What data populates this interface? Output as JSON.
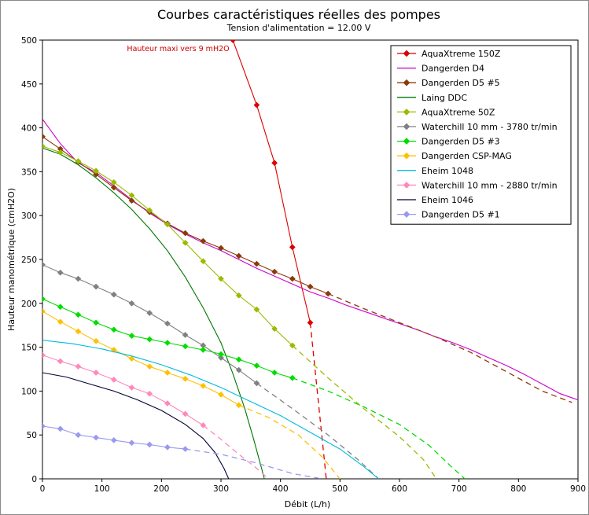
{
  "chart_data": {
    "type": "line",
    "title": "Courbes caractéristiques réelles des pompes",
    "subtitle": "Tension d'alimentation = 12.00 V",
    "xlabel": "Débit (L/h)",
    "ylabel": "Hauteur manométrique (cmH2O)",
    "xlim": [
      0,
      900
    ],
    "ylim": [
      0,
      500
    ],
    "xticks": [
      0,
      100,
      200,
      300,
      400,
      500,
      600,
      700,
      800,
      900
    ],
    "yticks": [
      0,
      50,
      100,
      150,
      200,
      250,
      300,
      350,
      400,
      450,
      500
    ],
    "grid": false,
    "legend_position": "top-right",
    "annotation": {
      "text": "Hauteur maxi vers 9 mH2O",
      "x": 228,
      "y": 490,
      "color": "#cc0000"
    },
    "series": [
      {
        "name": "AquaXtreme 150Z",
        "color": "#dd0000",
        "marker": "diamond",
        "points": [
          [
            320,
            500
          ],
          [
            360,
            426
          ],
          [
            390,
            360
          ],
          [
            420,
            264
          ],
          [
            450,
            178
          ]
        ],
        "extrapolated": [
          [
            450,
            178
          ],
          [
            477,
            0
          ]
        ]
      },
      {
        "name": "Dangerden D4",
        "color": "#cc00cc",
        "marker": "none",
        "points": [
          [
            0,
            410
          ],
          [
            30,
            382
          ],
          [
            60,
            360
          ],
          [
            90,
            349
          ],
          [
            120,
            334
          ],
          [
            150,
            318
          ],
          [
            180,
            303
          ],
          [
            210,
            290
          ],
          [
            240,
            279
          ],
          [
            270,
            269
          ],
          [
            300,
            260
          ],
          [
            330,
            250
          ],
          [
            360,
            240
          ],
          [
            390,
            231
          ],
          [
            420,
            222
          ],
          [
            450,
            213
          ],
          [
            480,
            206
          ],
          [
            510,
            198
          ],
          [
            540,
            191
          ],
          [
            570,
            184
          ],
          [
            600,
            177
          ],
          [
            630,
            170
          ],
          [
            660,
            162
          ],
          [
            690,
            155
          ],
          [
            720,
            147
          ],
          [
            750,
            138
          ],
          [
            780,
            129
          ],
          [
            810,
            119
          ],
          [
            840,
            108
          ],
          [
            870,
            97
          ],
          [
            900,
            90
          ]
        ]
      },
      {
        "name": "Dangerden D5 #5",
        "color": "#8b3a0a",
        "marker": "diamond",
        "points": [
          [
            0,
            390
          ],
          [
            30,
            376
          ],
          [
            60,
            361
          ],
          [
            90,
            347
          ],
          [
            120,
            332
          ],
          [
            150,
            317
          ],
          [
            180,
            304
          ],
          [
            210,
            291
          ],
          [
            240,
            280
          ],
          [
            270,
            271
          ],
          [
            300,
            263
          ],
          [
            330,
            254
          ],
          [
            360,
            245
          ],
          [
            390,
            236
          ],
          [
            420,
            228
          ],
          [
            450,
            219
          ],
          [
            480,
            211
          ]
        ],
        "extrapolated": [
          [
            480,
            211
          ],
          [
            540,
            194
          ],
          [
            600,
            178
          ],
          [
            660,
            162
          ],
          [
            720,
            144
          ],
          [
            780,
            122
          ],
          [
            840,
            100
          ],
          [
            890,
            87
          ]
        ]
      },
      {
        "name": "Laing DDC",
        "color": "#007700",
        "marker": "none",
        "points": [
          [
            0,
            377
          ],
          [
            30,
            370
          ],
          [
            60,
            358
          ],
          [
            90,
            343
          ],
          [
            120,
            326
          ],
          [
            150,
            307
          ],
          [
            180,
            285
          ],
          [
            210,
            260
          ],
          [
            240,
            230
          ],
          [
            270,
            195
          ],
          [
            300,
            155
          ],
          [
            320,
            120
          ],
          [
            340,
            80
          ],
          [
            355,
            45
          ],
          [
            365,
            20
          ],
          [
            373,
            0
          ]
        ]
      },
      {
        "name": "AquaXtreme 50Z",
        "color": "#99bb00",
        "marker": "diamond",
        "points": [
          [
            0,
            379
          ],
          [
            30,
            372
          ],
          [
            60,
            362
          ],
          [
            90,
            351
          ],
          [
            120,
            338
          ],
          [
            150,
            323
          ],
          [
            180,
            306
          ],
          [
            210,
            290
          ],
          [
            240,
            269
          ],
          [
            270,
            248
          ],
          [
            300,
            228
          ],
          [
            330,
            209
          ],
          [
            360,
            193
          ],
          [
            390,
            171
          ],
          [
            420,
            152
          ]
        ],
        "extrapolated": [
          [
            420,
            152
          ],
          [
            480,
            115
          ],
          [
            540,
            80
          ],
          [
            600,
            48
          ],
          [
            640,
            22
          ],
          [
            662,
            0
          ]
        ]
      },
      {
        "name": "Waterchill 10 mm - 3780 tr/min",
        "color": "#808080",
        "marker": "diamond",
        "points": [
          [
            0,
            244
          ],
          [
            30,
            235
          ],
          [
            60,
            228
          ],
          [
            90,
            219
          ],
          [
            120,
            210
          ],
          [
            150,
            200
          ],
          [
            180,
            189
          ],
          [
            210,
            177
          ],
          [
            240,
            164
          ],
          [
            270,
            152
          ],
          [
            300,
            138
          ],
          [
            330,
            124
          ],
          [
            360,
            109
          ]
        ],
        "extrapolated": [
          [
            360,
            109
          ],
          [
            420,
            80
          ],
          [
            480,
            50
          ],
          [
            530,
            22
          ],
          [
            565,
            0
          ]
        ]
      },
      {
        "name": "Dangerden D5 #3",
        "color": "#00dd00",
        "marker": "diamond",
        "points": [
          [
            0,
            205
          ],
          [
            30,
            196
          ],
          [
            60,
            187
          ],
          [
            90,
            178
          ],
          [
            120,
            170
          ],
          [
            150,
            163
          ],
          [
            180,
            159
          ],
          [
            210,
            155
          ],
          [
            240,
            151
          ],
          [
            270,
            147
          ],
          [
            300,
            142
          ],
          [
            330,
            136
          ],
          [
            360,
            129
          ],
          [
            390,
            121
          ],
          [
            420,
            115
          ]
        ],
        "extrapolated": [
          [
            420,
            115
          ],
          [
            480,
            100
          ],
          [
            540,
            82
          ],
          [
            600,
            62
          ],
          [
            650,
            38
          ],
          [
            690,
            12
          ],
          [
            710,
            0
          ]
        ]
      },
      {
        "name": "Dangerden CSP-MAG",
        "color": "#ffc000",
        "marker": "diamond",
        "points": [
          [
            0,
            191
          ],
          [
            30,
            179
          ],
          [
            60,
            168
          ],
          [
            90,
            157
          ],
          [
            120,
            147
          ],
          [
            150,
            137
          ],
          [
            180,
            128
          ],
          [
            210,
            121
          ],
          [
            240,
            114
          ],
          [
            270,
            106
          ],
          [
            300,
            96
          ],
          [
            330,
            84
          ]
        ],
        "extrapolated": [
          [
            330,
            84
          ],
          [
            380,
            70
          ],
          [
            430,
            50
          ],
          [
            470,
            25
          ],
          [
            500,
            0
          ]
        ]
      },
      {
        "name": "Eheim 1048",
        "color": "#00bbdd",
        "marker": "none",
        "points": [
          [
            0,
            158
          ],
          [
            50,
            154
          ],
          [
            100,
            148
          ],
          [
            150,
            140
          ],
          [
            200,
            130
          ],
          [
            250,
            118
          ],
          [
            300,
            104
          ],
          [
            350,
            88
          ],
          [
            400,
            72
          ],
          [
            450,
            53
          ],
          [
            500,
            34
          ],
          [
            540,
            14
          ],
          [
            565,
            0
          ]
        ]
      },
      {
        "name": "Waterchill 10 mm - 2880 tr/min",
        "color": "#ff88bb",
        "marker": "diamond",
        "points": [
          [
            0,
            141
          ],
          [
            30,
            134
          ],
          [
            60,
            128
          ],
          [
            90,
            121
          ],
          [
            120,
            113
          ],
          [
            150,
            104
          ],
          [
            180,
            97
          ],
          [
            210,
            86
          ],
          [
            240,
            74
          ],
          [
            270,
            61
          ]
        ],
        "extrapolated": [
          [
            270,
            61
          ],
          [
            300,
            45
          ],
          [
            330,
            28
          ],
          [
            360,
            12
          ],
          [
            380,
            0
          ]
        ]
      },
      {
        "name": "Eheim 1046",
        "color": "#000033",
        "marker": "none",
        "points": [
          [
            0,
            121
          ],
          [
            40,
            116
          ],
          [
            80,
            108
          ],
          [
            120,
            100
          ],
          [
            160,
            90
          ],
          [
            200,
            78
          ],
          [
            240,
            62
          ],
          [
            270,
            46
          ],
          [
            290,
            30
          ],
          [
            305,
            12
          ],
          [
            313,
            0
          ]
        ]
      },
      {
        "name": "Dangerden D5 #1",
        "color": "#9999ee",
        "marker": "diamond",
        "points": [
          [
            0,
            60
          ],
          [
            30,
            57
          ],
          [
            60,
            50
          ],
          [
            90,
            47
          ],
          [
            120,
            44
          ],
          [
            150,
            41
          ],
          [
            180,
            39
          ],
          [
            210,
            36
          ],
          [
            240,
            34
          ]
        ],
        "extrapolated": [
          [
            240,
            34
          ],
          [
            300,
            28
          ],
          [
            360,
            18
          ],
          [
            420,
            6
          ],
          [
            470,
            0
          ]
        ]
      }
    ]
  }
}
